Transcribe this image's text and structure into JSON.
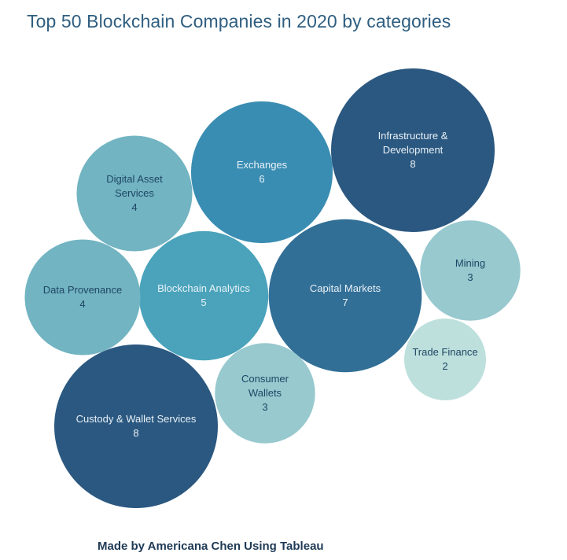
{
  "chart_data": {
    "type": "bubble",
    "title": "Top 50 Blockchain Companies in 2020 by categories",
    "categories": [
      {
        "lines": [
          "Infrastructure &",
          "Development"
        ],
        "value": 8,
        "color": "#2b5880",
        "text_color": "#e8f1f7"
      },
      {
        "lines": [
          "Custody & Wallet Services"
        ],
        "value": 8,
        "color": "#2b5880",
        "text_color": "#e8f1f7"
      },
      {
        "lines": [
          "Capital Markets"
        ],
        "value": 7,
        "color": "#326f96",
        "text_color": "#e8f1f7"
      },
      {
        "lines": [
          "Exchanges"
        ],
        "value": 6,
        "color": "#3a8db2",
        "text_color": "#e8f1f7"
      },
      {
        "lines": [
          "Blockchain Analytics"
        ],
        "value": 5,
        "color": "#4aa3bb",
        "text_color": "#e8f1f7"
      },
      {
        "lines": [
          "Digital Asset",
          "Services"
        ],
        "value": 4,
        "color": "#72b4c2",
        "text_color": "#1f4664"
      },
      {
        "lines": [
          "Data Provenance"
        ],
        "value": 4,
        "color": "#72b4c2",
        "text_color": "#1f4664"
      },
      {
        "lines": [
          "Mining"
        ],
        "value": 3,
        "color": "#97c9cf",
        "text_color": "#1f4664"
      },
      {
        "lines": [
          "Consumer",
          "Wallets"
        ],
        "value": 3,
        "color": "#97c9cf",
        "text_color": "#1f4664"
      },
      {
        "lines": [
          "Trade Finance"
        ],
        "value": 2,
        "color": "#bde0dc",
        "text_color": "#1f4664"
      }
    ]
  },
  "footer": {
    "credit": "Made by Americana Chen Using Tableau"
  }
}
